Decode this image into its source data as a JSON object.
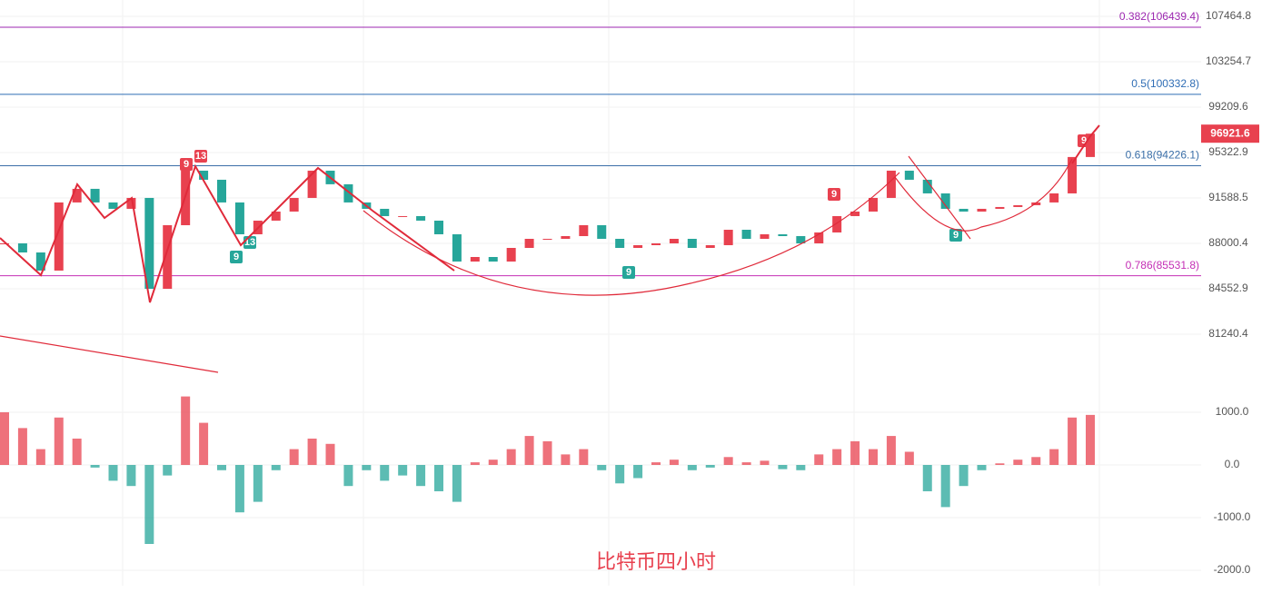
{
  "chart_data": {
    "type": "candlestick",
    "title": "比特币四小时",
    "log_scale": true,
    "up_color": "#e8414f",
    "down_color": "#26a69a",
    "values": [
      88000,
      87299,
      85918,
      91228,
      92328,
      91228,
      90717,
      91592,
      84550,
      89419,
      93816,
      93069,
      91228,
      88707,
      89778,
      90499,
      91592,
      93816,
      92700,
      91228,
      90717,
      90138,
      90138,
      89778,
      88707,
      86604,
      86951,
      86604,
      87649,
      88353,
      88353,
      88565,
      89419,
      88353,
      87649,
      87860,
      88000,
      88353,
      87649,
      87860,
      89061,
      88353,
      88707,
      88565,
      88000,
      88850,
      90138,
      90499,
      91592,
      93816,
      93069,
      91958,
      90717,
      90499,
      90717,
      90862,
      91007,
      91228,
      91958,
      94950,
      96921.6
    ],
    "ylim": [
      78558,
      109022
    ],
    "yticks": [
      107464.8,
      103254.7,
      99209.6,
      95322.9,
      91588.5,
      88000.4,
      84552.9,
      81240.4
    ],
    "last_price": 96921.6,
    "fib_levels": [
      {
        "label": "0.382(106439.4)",
        "value": 106439.4,
        "color": "#9c27b0"
      },
      {
        "label": "0.5(100332.8)",
        "value": 100332.8,
        "color": "#2f6db5"
      },
      {
        "label": "0.618(94226.1)",
        "value": 94226.1,
        "color": "#3b6fa8"
      },
      {
        "label": "0.786(85531.8)",
        "value": 85531.8,
        "color": "#c42fb5"
      }
    ],
    "td_markers": [
      {
        "label": "9",
        "color": "#e8414f"
      },
      {
        "label": "13",
        "color": "#e8414f"
      },
      {
        "label": "9",
        "color": "#26a69a"
      },
      {
        "label": "13",
        "color": "#26a69a"
      },
      {
        "label": "9",
        "color": "#26a69a"
      },
      {
        "label": "9",
        "color": "#e8414f"
      },
      {
        "label": "9",
        "color": "#26a69a"
      },
      {
        "label": "9",
        "color": "#e8414f"
      }
    ],
    "macd": {
      "values": [
        1000,
        700,
        300,
        900,
        500,
        -50,
        -300,
        -400,
        -1500,
        -200,
        1300,
        800,
        -100,
        -900,
        -700,
        -100,
        300,
        500,
        400,
        -400,
        -100,
        -300,
        -200,
        -400,
        -500,
        -700,
        50,
        100,
        300,
        550,
        450,
        200,
        300,
        -100,
        -350,
        -250,
        50,
        100,
        -100,
        -50,
        150,
        50,
        80,
        -80,
        -100,
        200,
        300,
        450,
        300,
        550,
        250,
        -500,
        -800,
        -400,
        -100,
        30,
        100,
        150,
        300,
        900,
        950
      ],
      "ylim": [
        -2293,
        1672
      ],
      "yticks": [
        {
          "value": 1000,
          "label": "1000.0"
        },
        {
          "value": 0,
          "label": "0.0"
        },
        {
          "value": -1000,
          "label": "-1000.0"
        },
        {
          "value": -2000,
          "label": "-2000.0"
        }
      ]
    }
  }
}
